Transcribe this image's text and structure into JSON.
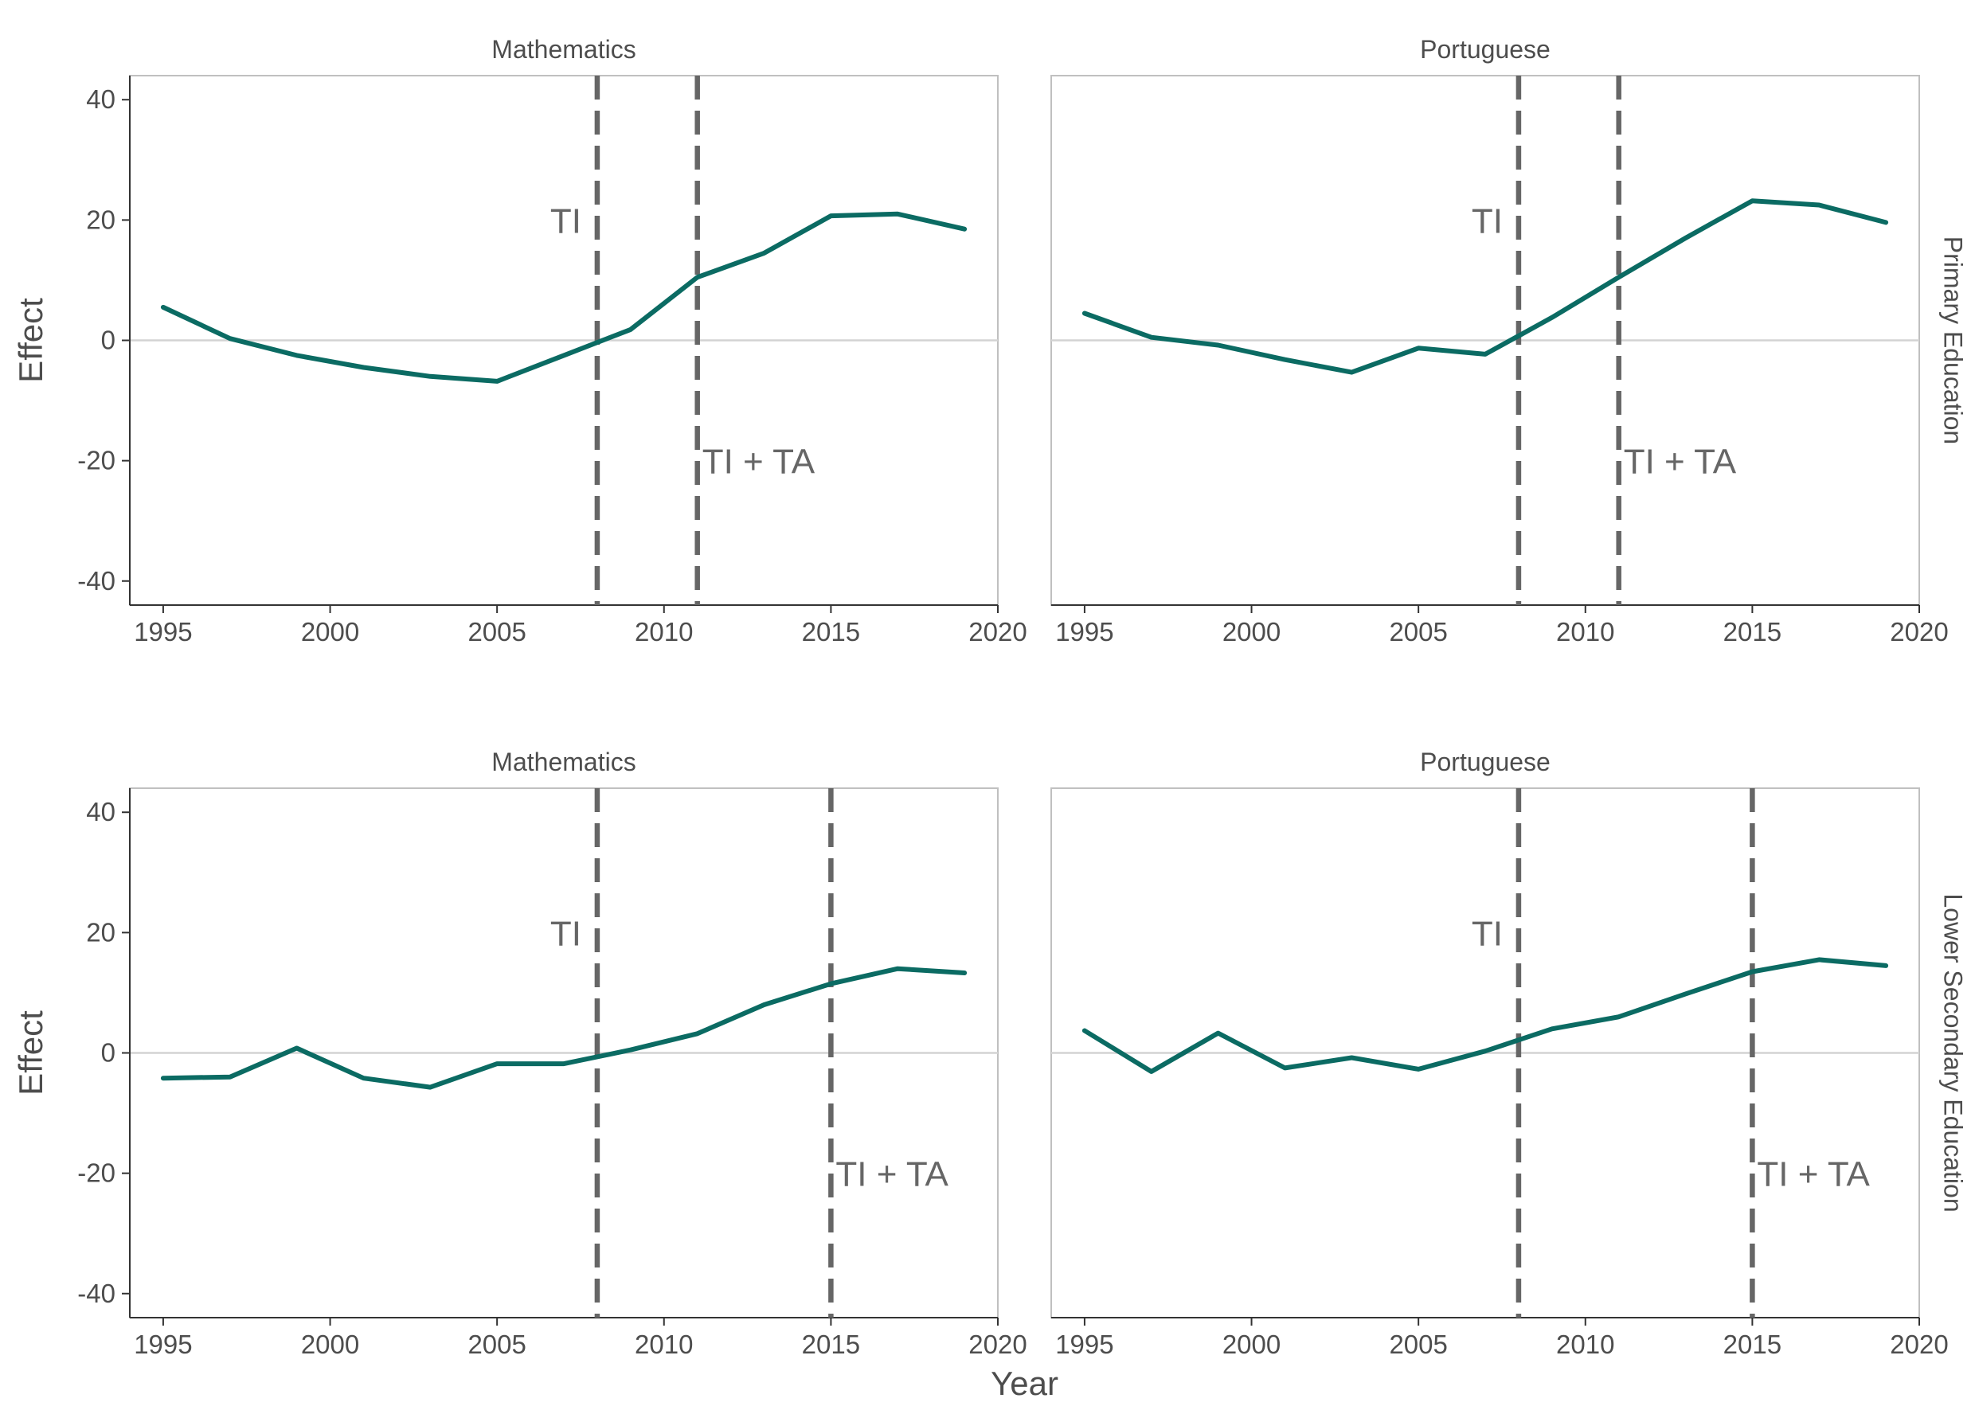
{
  "chart_data": {
    "type": "line",
    "xlabel": "Year",
    "ylabel": "Effect",
    "xlim": [
      1994,
      2020
    ],
    "ylim": [
      -44,
      44
    ],
    "x_ticks": [
      1995,
      2000,
      2005,
      2010,
      2015,
      2020
    ],
    "y_ticks": [
      -40,
      -20,
      0,
      20,
      40
    ],
    "y_tick_labels": [
      "-40",
      "-20",
      "0",
      "20",
      "40"
    ],
    "grid": false,
    "colors": {
      "line": "#0b6b63",
      "reference": "#666666",
      "zero_line": "#d3d3d3",
      "panel_border": "#c0c0c0"
    },
    "columns": [
      "Mathematics",
      "Portuguese"
    ],
    "rows": [
      "Primary Education",
      "Lower Secondary Education"
    ],
    "panels": [
      {
        "subject": "Mathematics",
        "level": "Primary Education",
        "x": [
          1995,
          1997,
          1999,
          2001,
          2003,
          2005,
          2007,
          2009,
          2011,
          2013,
          2015,
          2017,
          2019
        ],
        "y": [
          5.5,
          0.3,
          -2.5,
          -4.5,
          -6,
          -6.8,
          -2.5,
          1.8,
          10.5,
          14.5,
          20.7,
          21,
          18.5
        ],
        "vlines": [
          {
            "x": 2008,
            "label": "TI",
            "label_y": 20
          },
          {
            "x": 2011,
            "label": "TI + TA",
            "label_y": -20
          }
        ]
      },
      {
        "subject": "Portuguese",
        "level": "Primary Education",
        "x": [
          1995,
          1997,
          1999,
          2001,
          2003,
          2005,
          2007,
          2009,
          2011,
          2013,
          2015,
          2017,
          2019
        ],
        "y": [
          4.5,
          0.5,
          -0.8,
          -3.2,
          -5.3,
          -1.3,
          -2.3,
          3.8,
          10.5,
          17,
          23.2,
          22.5,
          19.6
        ],
        "vlines": [
          {
            "x": 2008,
            "label": "TI",
            "label_y": 20
          },
          {
            "x": 2011,
            "label": "TI + TA",
            "label_y": -20
          }
        ]
      },
      {
        "subject": "Mathematics",
        "level": "Lower Secondary Education",
        "x": [
          1995,
          1997,
          1999,
          2001,
          2003,
          2005,
          2007,
          2009,
          2011,
          2013,
          2015,
          2017,
          2019
        ],
        "y": [
          -4.2,
          -4,
          0.8,
          -4.2,
          -5.7,
          -1.8,
          -1.8,
          0.5,
          3.2,
          8,
          11.5,
          14,
          13.3
        ],
        "vlines": [
          {
            "x": 2008,
            "label": "TI",
            "label_y": 20
          },
          {
            "x": 2015,
            "label": "TI + TA",
            "label_y": -20
          }
        ]
      },
      {
        "subject": "Portuguese",
        "level": "Lower Secondary Education",
        "x": [
          1995,
          1997,
          1999,
          2001,
          2003,
          2005,
          2007,
          2009,
          2011,
          2013,
          2015,
          2017,
          2019
        ],
        "y": [
          3.7,
          -3.1,
          3.3,
          -2.5,
          -0.8,
          -2.7,
          0.3,
          4,
          6,
          9.8,
          13.5,
          15.5,
          14.5
        ],
        "vlines": [
          {
            "x": 2008,
            "label": "TI",
            "label_y": 20
          },
          {
            "x": 2015,
            "label": "TI + TA",
            "label_y": -20
          }
        ]
      }
    ]
  }
}
